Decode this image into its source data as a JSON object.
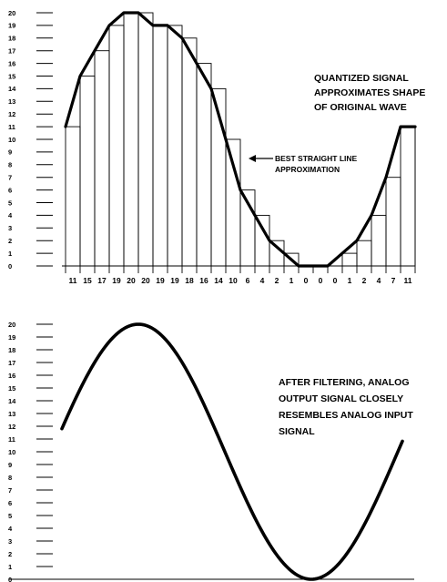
{
  "panels": {
    "top": {
      "y_ticks": [
        "0",
        "1",
        "2",
        "3",
        "4",
        "5",
        "6",
        "7",
        "8",
        "9",
        "10",
        "11",
        "12",
        "13",
        "14",
        "15",
        "16",
        "17",
        "18",
        "19",
        "20"
      ],
      "samples": [
        11,
        15,
        17,
        19,
        20,
        20,
        19,
        19,
        18,
        16,
        14,
        10,
        6,
        4,
        2,
        1,
        0,
        0,
        0,
        1,
        2,
        4,
        7,
        11
      ],
      "sample_labels": [
        "11",
        "15",
        "17",
        "19",
        "20",
        "20",
        "19",
        "19",
        "18",
        "16",
        "14",
        "10",
        "6",
        "4",
        "2",
        "1",
        "0",
        "0",
        "0",
        "1",
        "2",
        "4",
        "7",
        "11"
      ],
      "annotation_lines": [
        "QUANTIZED SIGNAL",
        "APPROXIMATES SHAPE",
        "OF ORIGINAL WAVE"
      ],
      "callout_lines": [
        "BEST STRAIGHT LINE",
        "APPROXIMATION"
      ]
    },
    "bottom": {
      "y_ticks": [
        "0",
        "1",
        "2",
        "3",
        "4",
        "5",
        "6",
        "7",
        "8",
        "9",
        "10",
        "11",
        "12",
        "13",
        "14",
        "15",
        "16",
        "17",
        "18",
        "19",
        "20"
      ],
      "annotation_lines": [
        "AFTER FILTERING, ANALOG",
        "OUTPUT SIGNAL CLOSELY",
        "RESEMBLES ANALOG INPUT",
        "SIGNAL"
      ]
    }
  }
}
